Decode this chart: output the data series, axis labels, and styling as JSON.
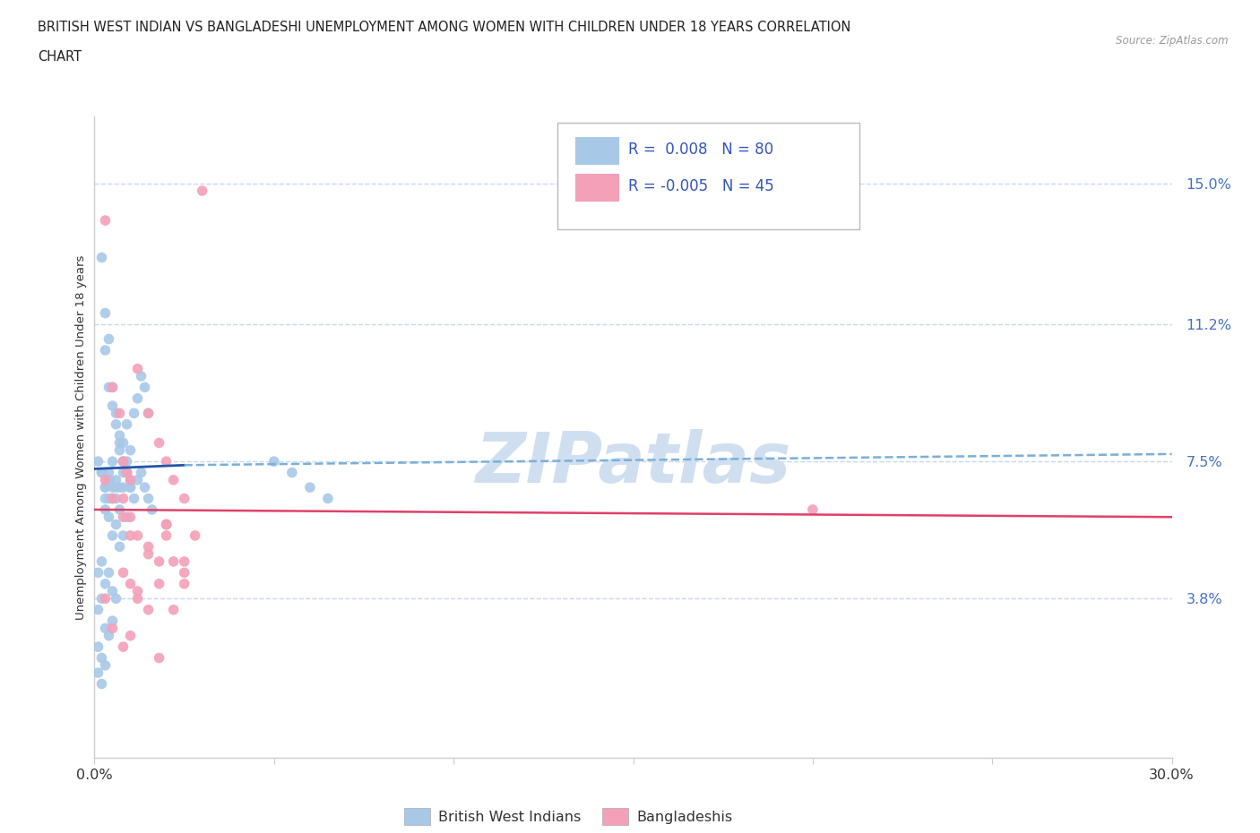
{
  "title_line1": "BRITISH WEST INDIAN VS BANGLADESHI UNEMPLOYMENT AMONG WOMEN WITH CHILDREN UNDER 18 YEARS CORRELATION",
  "title_line2": "CHART",
  "source": "Source: ZipAtlas.com",
  "ylabel": "Unemployment Among Women with Children Under 18 years",
  "xlim": [
    0.0,
    0.3
  ],
  "ylim": [
    -0.005,
    0.168
  ],
  "yticks": [
    0.038,
    0.075,
    0.112,
    0.15
  ],
  "ytick_labels": [
    "3.8%",
    "7.5%",
    "11.2%",
    "15.0%"
  ],
  "xticks": [
    0.0,
    0.05,
    0.1,
    0.15,
    0.2,
    0.25,
    0.3
  ],
  "xtick_labels": [
    "0.0%",
    "",
    "",
    "",
    "",
    "",
    "30.0%"
  ],
  "bottom_legend": [
    {
      "label": "British West Indians",
      "color": "#a8c8e8"
    },
    {
      "label": "Bangladeshis",
      "color": "#f4a0b8"
    }
  ],
  "blue_scatter_color": "#a8c8e8",
  "pink_scatter_color": "#f4a0b8",
  "trend_blue_solid_color": "#2255aa",
  "trend_blue_dash_color": "#7ab0d8",
  "trend_pink_color": "#e0406a",
  "grid_color": "#c8d8ee",
  "watermark_color": "#d0dff0",
  "blue_points_x": [
    0.002,
    0.003,
    0.004,
    0.005,
    0.006,
    0.007,
    0.008,
    0.009,
    0.01,
    0.011,
    0.012,
    0.013,
    0.014,
    0.015,
    0.003,
    0.004,
    0.005,
    0.006,
    0.007,
    0.008,
    0.009,
    0.01,
    0.003,
    0.004,
    0.005,
    0.006,
    0.007,
    0.008,
    0.009,
    0.01,
    0.003,
    0.004,
    0.005,
    0.006,
    0.007,
    0.008,
    0.009,
    0.002,
    0.003,
    0.004,
    0.005,
    0.006,
    0.007,
    0.008,
    0.001,
    0.002,
    0.003,
    0.004,
    0.005,
    0.006,
    0.001,
    0.002,
    0.003,
    0.004,
    0.005,
    0.001,
    0.002,
    0.003,
    0.001,
    0.002,
    0.003,
    0.004,
    0.005,
    0.006,
    0.001,
    0.002,
    0.05,
    0.055,
    0.06,
    0.065,
    0.007,
    0.008,
    0.009,
    0.01,
    0.011,
    0.012,
    0.013,
    0.014,
    0.015,
    0.016
  ],
  "blue_points_y": [
    0.13,
    0.105,
    0.095,
    0.09,
    0.085,
    0.082,
    0.08,
    0.085,
    0.078,
    0.088,
    0.092,
    0.098,
    0.095,
    0.088,
    0.115,
    0.108,
    0.095,
    0.088,
    0.08,
    0.075,
    0.072,
    0.07,
    0.068,
    0.072,
    0.075,
    0.07,
    0.068,
    0.072,
    0.075,
    0.068,
    0.062,
    0.065,
    0.068,
    0.065,
    0.062,
    0.068,
    0.06,
    0.072,
    0.065,
    0.06,
    0.055,
    0.058,
    0.052,
    0.055,
    0.045,
    0.048,
    0.042,
    0.045,
    0.04,
    0.038,
    0.035,
    0.038,
    0.03,
    0.028,
    0.032,
    0.025,
    0.022,
    0.02,
    0.075,
    0.072,
    0.068,
    0.07,
    0.065,
    0.068,
    0.018,
    0.015,
    0.075,
    0.072,
    0.068,
    0.065,
    0.078,
    0.075,
    0.072,
    0.068,
    0.065,
    0.07,
    0.072,
    0.068,
    0.065,
    0.062
  ],
  "pink_points_x": [
    0.003,
    0.005,
    0.007,
    0.008,
    0.009,
    0.01,
    0.012,
    0.015,
    0.018,
    0.02,
    0.022,
    0.025,
    0.028,
    0.03,
    0.008,
    0.01,
    0.012,
    0.015,
    0.02,
    0.025,
    0.008,
    0.01,
    0.012,
    0.015,
    0.018,
    0.02,
    0.022,
    0.025,
    0.003,
    0.005,
    0.008,
    0.01,
    0.015,
    0.018,
    0.02,
    0.025,
    0.003,
    0.005,
    0.008,
    0.01,
    0.012,
    0.018,
    0.02,
    0.022,
    0.2
  ],
  "pink_points_y": [
    0.14,
    0.095,
    0.088,
    0.075,
    0.072,
    0.07,
    0.1,
    0.088,
    0.08,
    0.075,
    0.07,
    0.065,
    0.055,
    0.148,
    0.065,
    0.06,
    0.055,
    0.05,
    0.058,
    0.048,
    0.045,
    0.042,
    0.038,
    0.035,
    0.042,
    0.055,
    0.048,
    0.045,
    0.07,
    0.065,
    0.06,
    0.055,
    0.052,
    0.048,
    0.058,
    0.042,
    0.038,
    0.03,
    0.025,
    0.028,
    0.04,
    0.022,
    0.058,
    0.035,
    0.062
  ],
  "blue_trend_x0": 0.0,
  "blue_trend_x_break": 0.025,
  "blue_trend_x1": 0.3,
  "blue_trend_y_at0": 0.073,
  "blue_trend_y_break": 0.074,
  "blue_trend_y_at1": 0.077,
  "pink_trend_y0": 0.062,
  "pink_trend_y1": 0.06
}
